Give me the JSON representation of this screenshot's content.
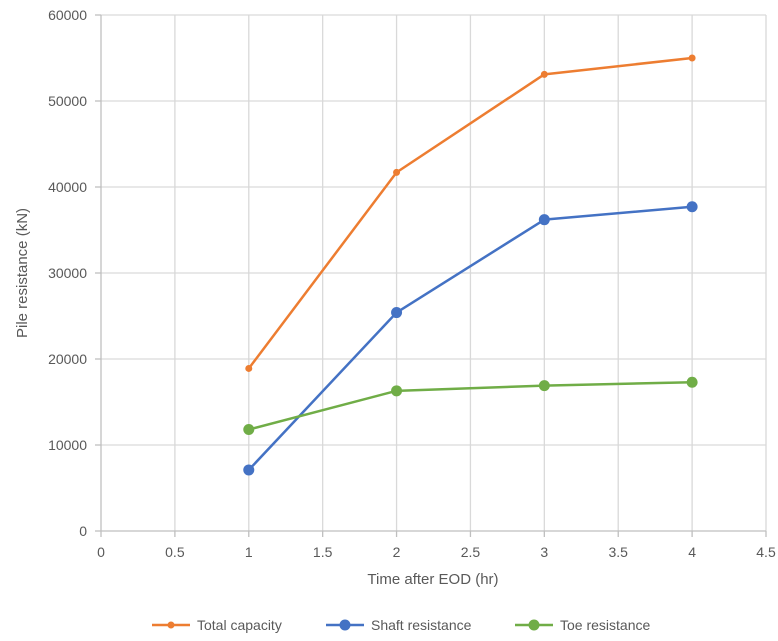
{
  "chart_data": {
    "type": "line",
    "title": "",
    "xlabel": "Time after EOD (hr)",
    "ylabel": "Pile resistance (kN)",
    "xlim": [
      0,
      4.5
    ],
    "ylim": [
      0,
      60000
    ],
    "xticks": [
      0,
      0.5,
      1,
      1.5,
      2,
      2.5,
      3,
      3.5,
      4,
      4.5
    ],
    "yticks": [
      0,
      10000,
      20000,
      30000,
      40000,
      50000,
      60000
    ],
    "x_tick_labels": [
      "0",
      "0.5",
      "1",
      "1.5",
      "2",
      "2.5",
      "3",
      "3.5",
      "4",
      "4.5"
    ],
    "y_tick_labels": [
      "0",
      "10000",
      "20000",
      "30000",
      "40000",
      "50000",
      "60000"
    ],
    "grid": true,
    "legend_position": "bottom",
    "x": [
      1,
      2,
      3,
      4
    ],
    "series": [
      {
        "name": "Total  capacity",
        "color": "#ED7D31",
        "marker": "small-circle",
        "values": [
          18900,
          41700,
          53100,
          55000
        ]
      },
      {
        "name": "Shaft resistance",
        "color": "#4472C4",
        "marker": "circle",
        "values": [
          7100,
          25400,
          36200,
          37700
        ]
      },
      {
        "name": "Toe resistance",
        "color": "#70AD47",
        "marker": "circle",
        "values": [
          11800,
          16300,
          16900,
          17300
        ]
      }
    ]
  }
}
